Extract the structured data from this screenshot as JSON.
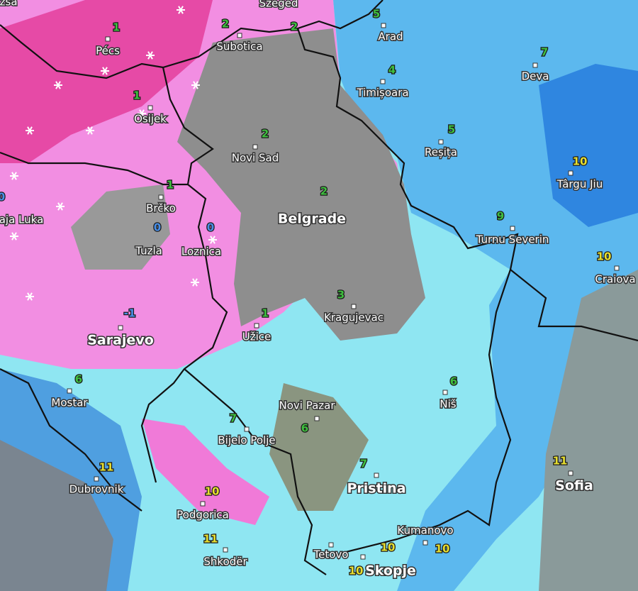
{
  "places": [
    {
      "name": "izsa"
    },
    {
      "name": "Szeged"
    },
    {
      "name": "Pécs"
    },
    {
      "name": "Subotica"
    },
    {
      "name": "Arad"
    },
    {
      "name": "Deva"
    },
    {
      "name": "Timișoara"
    },
    {
      "name": "Osijek"
    },
    {
      "name": "Reșița"
    },
    {
      "name": "Novi Sad"
    },
    {
      "name": "Târgu Jiu"
    },
    {
      "name": "Brčko"
    },
    {
      "name": "Belgrade"
    },
    {
      "name": "aja Luka"
    },
    {
      "name": "Tuzla"
    },
    {
      "name": "Loznica"
    },
    {
      "name": "Turnu Severin"
    },
    {
      "name": "Craiova"
    },
    {
      "name": "Kragujevac"
    },
    {
      "name": "Užice"
    },
    {
      "name": "Sarajevo"
    },
    {
      "name": "Mostar"
    },
    {
      "name": "Niš"
    },
    {
      "name": "Novi Pazar"
    },
    {
      "name": "Bijelo Polje"
    },
    {
      "name": "Pristina"
    },
    {
      "name": "Sofia"
    },
    {
      "name": "Dubrovnik"
    },
    {
      "name": "Podgorica"
    },
    {
      "name": "Kumanovo"
    },
    {
      "name": "Shkodër"
    },
    {
      "name": "Tetovo"
    },
    {
      "name": "Skopje"
    }
  ],
  "readings": [
    {
      "value": 1,
      "color": "#3fbf3f"
    },
    {
      "value": 2,
      "color": "#3fbf3f"
    },
    {
      "value": 2,
      "color": "#3fbf3f"
    },
    {
      "value": 5,
      "color": "#3fbf3f"
    },
    {
      "value": 7,
      "color": "#3fbf3f"
    },
    {
      "value": 4,
      "color": "#3fbf3f"
    },
    {
      "value": 1,
      "color": "#3fbf3f"
    },
    {
      "value": 2,
      "color": "#3fbf3f"
    },
    {
      "value": 5,
      "color": "#3fbf3f"
    },
    {
      "value": 10,
      "color": "#e8e030"
    },
    {
      "value": 2,
      "color": "#3fbf3f"
    },
    {
      "value": 1,
      "color": "#3fbf3f"
    },
    {
      "value": 0,
      "color": "#4a90e8"
    },
    {
      "value": 0,
      "color": "#4a90e8"
    },
    {
      "value": 0,
      "color": "#4a90e8"
    },
    {
      "value": 9,
      "color": "#3fbf3f"
    },
    {
      "value": 10,
      "color": "#e8e030"
    },
    {
      "value": 3,
      "color": "#3fbf3f"
    },
    {
      "value": 1,
      "color": "#3fbf3f"
    },
    {
      "value": -1,
      "color": "#4a90e8"
    },
    {
      "value": 6,
      "color": "#3fbf3f"
    },
    {
      "value": 6,
      "color": "#3fbf3f"
    },
    {
      "value": 7,
      "color": "#3fbf3f"
    },
    {
      "value": 6,
      "color": "#3fbf3f"
    },
    {
      "value": 7,
      "color": "#3fbf3f"
    },
    {
      "value": 11,
      "color": "#e8e030"
    },
    {
      "value": 11,
      "color": "#e8e030"
    },
    {
      "value": 10,
      "color": "#e8e030"
    },
    {
      "value": 11,
      "color": "#e8e030"
    },
    {
      "value": 10,
      "color": "#e8e030"
    },
    {
      "value": 10,
      "color": "#e8e030"
    },
    {
      "value": 10,
      "color": "#e8e030"
    }
  ]
}
